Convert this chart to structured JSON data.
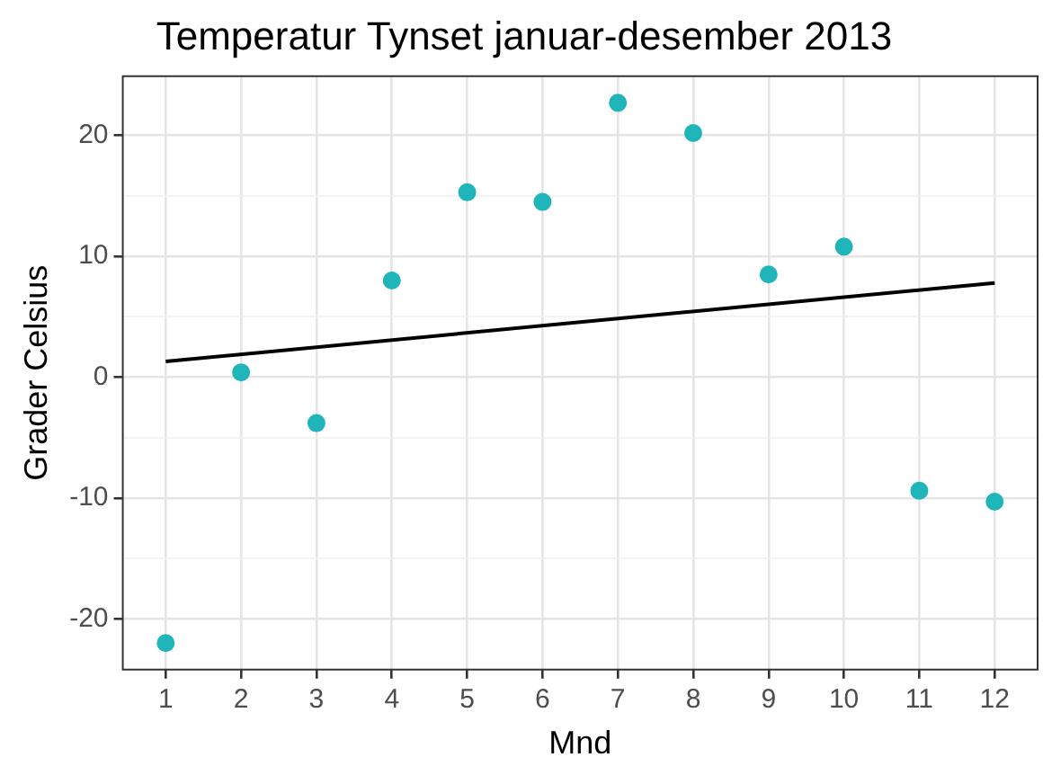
{
  "chart_data": {
    "type": "scatter",
    "title": "Temperatur Tynset januar-desember 2013",
    "xlabel": "Mnd",
    "ylabel": "Grader Celsius",
    "x": [
      1,
      2,
      3,
      4,
      5,
      6,
      7,
      8,
      9,
      10,
      11,
      12
    ],
    "series": [
      {
        "type": "scatter",
        "marker": "circle",
        "color": "#1fb5b9",
        "values": [
          -22.0,
          0.4,
          -3.8,
          8.0,
          15.3,
          14.5,
          22.7,
          20.2,
          8.5,
          10.8,
          -9.4,
          -10.3
        ]
      },
      {
        "type": "line",
        "marker": "none",
        "color": "#000000",
        "x": [
          1,
          12
        ],
        "values": [
          1.3,
          7.8
        ]
      }
    ],
    "xlim": [
      0.43,
      12.57
    ],
    "xticks": [
      1,
      2,
      3,
      4,
      5,
      6,
      7,
      8,
      9,
      10,
      11,
      12
    ],
    "ylim": [
      -24.2,
      24.9
    ],
    "yticks": [
      {
        "value": -20,
        "label": "-20"
      },
      {
        "value": -15,
        "label": null
      },
      {
        "value": -10,
        "label": "-10"
      },
      {
        "value": -5,
        "label": null
      },
      0,
      {
        "value": 5,
        "label": null
      },
      10,
      {
        "value": 15,
        "label": null
      },
      20
    ],
    "grid": true,
    "legend": false
  }
}
